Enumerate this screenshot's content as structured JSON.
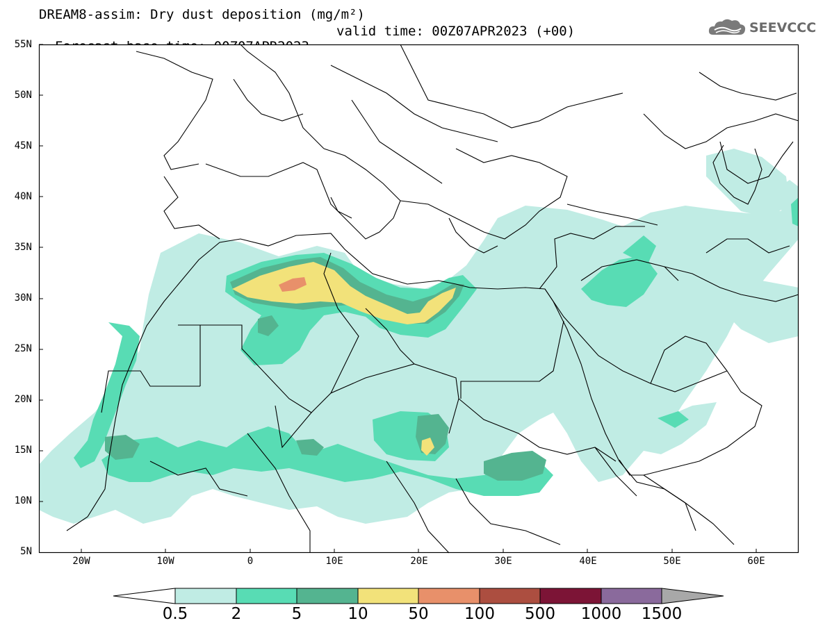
{
  "title": {
    "line1": "DREAM8-assim: Dry dust deposition (mg/m²)",
    "base": "Forecast base time: 00Z07APR2023",
    "valid": "valid time: 00Z07APR2023 (+00)"
  },
  "logo": {
    "text": "SEEVCCC",
    "icon": "cloud-logo-icon"
  },
  "map": {
    "projection": "lat-lon",
    "lon_range": [
      -25,
      65
    ],
    "lat_range": [
      5,
      55
    ],
    "lat_ticks": [
      "55N",
      "50N",
      "45N",
      "40N",
      "35N",
      "30N",
      "25N",
      "20N",
      "15N",
      "10N",
      "5N"
    ],
    "lon_ticks": [
      "20W",
      "10W",
      "0",
      "10E",
      "20E",
      "30E",
      "40E",
      "50E",
      "60E"
    ]
  },
  "colorbar": {
    "labels": [
      "0.5",
      "2",
      "5",
      "10",
      "50",
      "100",
      "500",
      "1000",
      "1500"
    ],
    "colors": [
      "#c0ece4",
      "#58dcb4",
      "#54b490",
      "#f2e27a",
      "#e8906a",
      "#ac4e40",
      "#7c1436",
      "#8a6a9c"
    ],
    "under_color": "#ffffff",
    "over_color": "#a8a8a8"
  }
}
